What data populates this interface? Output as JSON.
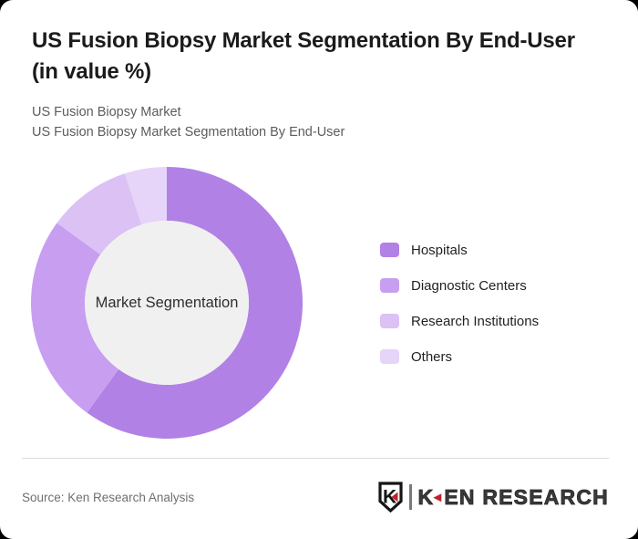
{
  "page": {
    "background_color": "#000000",
    "card_background_color": "#ffffff"
  },
  "header": {
    "title": "US Fusion Biopsy Market Segmentation By End-User (in value %)",
    "title_line1": "US Fusion Biopsy Market Segmentation By End-User",
    "title_line2": "(in value %)",
    "subtitle_line1": "US Fusion Biopsy Market",
    "subtitle_line2": "US Fusion Biopsy Market Segmentation By End-User"
  },
  "chart_data": {
    "type": "pie",
    "variant": "donut",
    "title": "US Fusion Biopsy Market Segmentation By End-User (in value %)",
    "unit": "value %",
    "center_label": "Market Segmentation",
    "center_fill": "#f0f0f0",
    "start_angle_deg": 0,
    "direction": "clockwise",
    "legend_position": "right",
    "outer_radius_px": 149,
    "inner_radius_px": 90,
    "segments": [
      {
        "label": "Hospitals",
        "value": 60,
        "color": "#b181e6"
      },
      {
        "label": "Diagnostic Centers",
        "value": 25,
        "color": "#c79ef0"
      },
      {
        "label": "Research Institutions",
        "value": 10,
        "color": "#dcc1f5"
      },
      {
        "label": "Others",
        "value": 5,
        "color": "#e6d4f9"
      }
    ]
  },
  "footer": {
    "source": "Source: Ken Research Analysis",
    "logo": {
      "emblem_letter": "K",
      "wordmark_prefix": "K",
      "arrow_glyph": "◄",
      "wordmark_suffix": "EN RESEARCH",
      "accent_color": "#c0222c",
      "text_color": "#3b3b3b"
    }
  }
}
